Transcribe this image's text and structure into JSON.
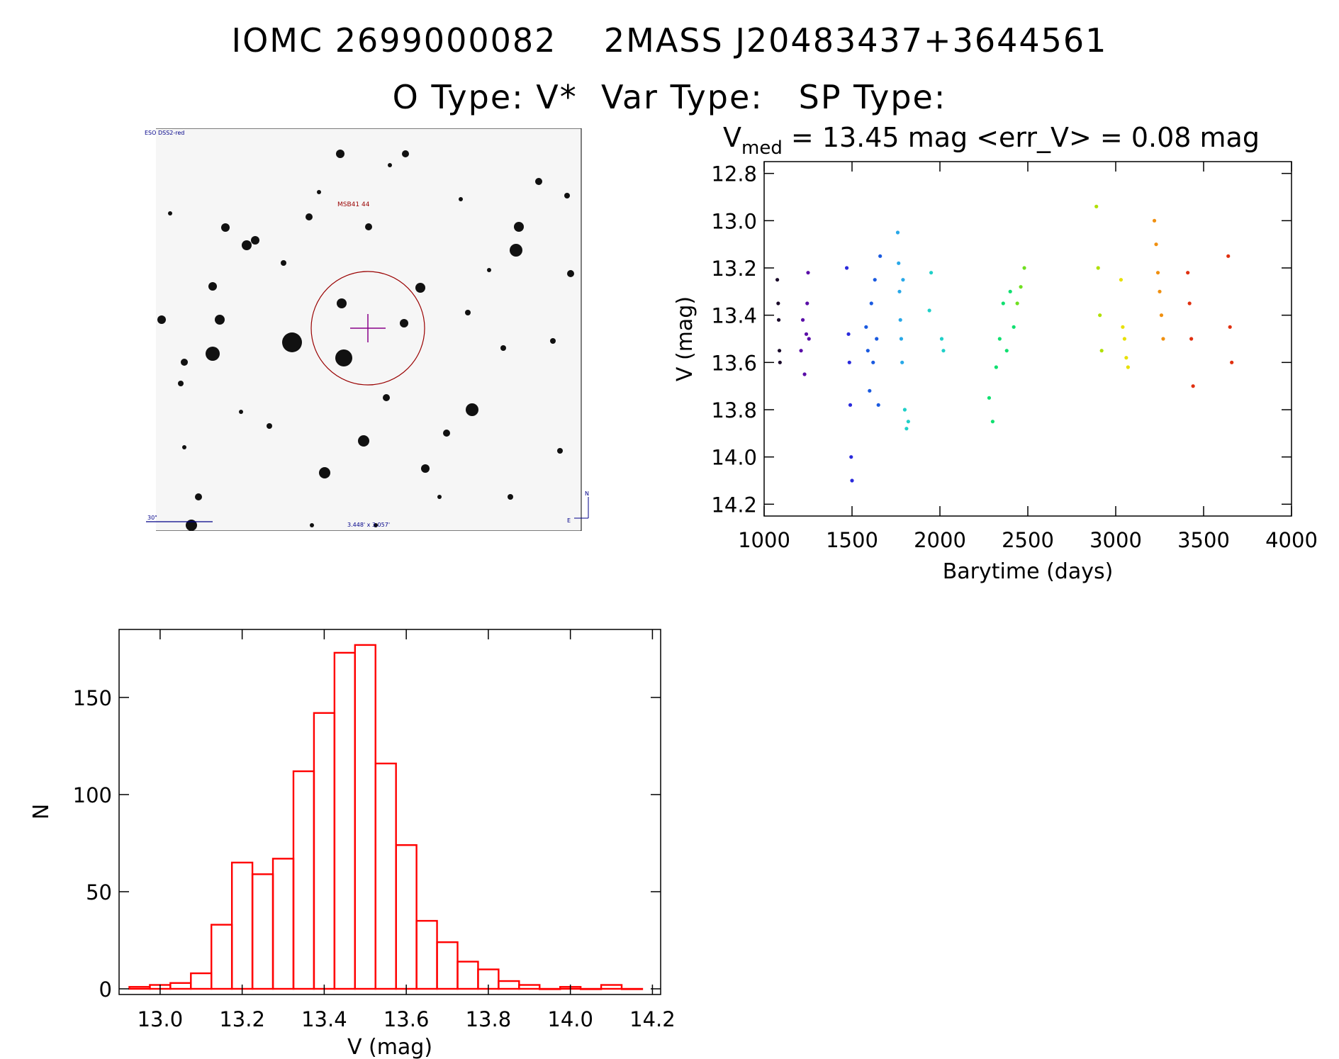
{
  "header": {
    "line1": "IOMC 2699000082    2MASS J20483437+3644561",
    "line2": "O Type: V*  Var Type:   SP Type:"
  },
  "finder": {
    "survey_label": "ESO DSS2-red",
    "target_label": "MSB41 44",
    "scale_label": "30\"",
    "fov_label": "3.448' x 3.057'",
    "north_label": "N",
    "east_label": "E"
  },
  "lightcurve": {
    "stats_prefix": "V",
    "stats_sub": "med",
    "stats_rest": " = 13.45 mag <err_V> = 0.08 mag"
  },
  "chart_data": [
    {
      "type": "scatter",
      "xlabel": "Barytime (days)",
      "ylabel": "V (mag)",
      "xlim": [
        1000,
        4000
      ],
      "ylim": [
        14.25,
        12.75
      ],
      "y_inverted": true,
      "xticks": [
        "1000",
        "1500",
        "2000",
        "2500",
        "3000",
        "3500",
        "4000"
      ],
      "yticks": [
        "12.8",
        "13.0",
        "13.2",
        "13.4",
        "13.6",
        "13.8",
        "14.0",
        "14.2"
      ],
      "series": [
        {
          "color": "#1a0a2a",
          "x": [
            1075,
            1080,
            1083,
            1087,
            1090
          ],
          "y": [
            13.25,
            13.35,
            13.42,
            13.55,
            13.6
          ]
        },
        {
          "color": "#5a0ea8",
          "x": [
            1210,
            1220,
            1230,
            1240,
            1245,
            1250,
            1255
          ],
          "y": [
            13.55,
            13.42,
            13.65,
            13.48,
            13.35,
            13.22,
            13.5
          ]
        },
        {
          "color": "#2a2adc",
          "x": [
            1470,
            1480,
            1485,
            1490,
            1495,
            1500
          ],
          "y": [
            13.2,
            13.48,
            13.6,
            13.78,
            14.0,
            14.1
          ]
        },
        {
          "color": "#1a5ae0",
          "x": [
            1580,
            1590,
            1600,
            1610,
            1620,
            1630,
            1640,
            1650,
            1660
          ],
          "y": [
            13.45,
            13.55,
            13.72,
            13.35,
            13.6,
            13.25,
            13.5,
            13.78,
            13.15
          ]
        },
        {
          "color": "#28a8e8",
          "x": [
            1760,
            1765,
            1770,
            1775,
            1780,
            1785,
            1790
          ],
          "y": [
            13.05,
            13.18,
            13.3,
            13.42,
            13.5,
            13.6,
            13.25
          ]
        },
        {
          "color": "#20d0c8",
          "x": [
            1800,
            1810,
            1820,
            1940,
            1950,
            2010,
            2020
          ],
          "y": [
            13.8,
            13.88,
            13.85,
            13.38,
            13.22,
            13.5,
            13.55
          ]
        },
        {
          "color": "#10e070",
          "x": [
            2280,
            2300,
            2320,
            2340,
            2360,
            2380,
            2400,
            2420
          ],
          "y": [
            13.75,
            13.85,
            13.62,
            13.5,
            13.35,
            13.55,
            13.3,
            13.45
          ]
        },
        {
          "color": "#70e020",
          "x": [
            2440,
            2460,
            2480
          ],
          "y": [
            13.35,
            13.28,
            13.2
          ]
        },
        {
          "color": "#b0e000",
          "x": [
            2890,
            2900,
            2910,
            2920
          ],
          "y": [
            12.94,
            13.2,
            13.4,
            13.55
          ]
        },
        {
          "color": "#e8e000",
          "x": [
            3030,
            3040,
            3050,
            3060,
            3070
          ],
          "y": [
            13.25,
            13.45,
            13.5,
            13.58,
            13.62
          ]
        },
        {
          "color": "#f09010",
          "x": [
            3220,
            3230,
            3240,
            3250,
            3260,
            3270
          ],
          "y": [
            13.0,
            13.1,
            13.22,
            13.3,
            13.4,
            13.5
          ]
        },
        {
          "color": "#e03010",
          "x": [
            3410,
            3420,
            3430,
            3440,
            3640,
            3650,
            3660
          ],
          "y": [
            13.22,
            13.35,
            13.5,
            13.7,
            13.15,
            13.45,
            13.6
          ]
        }
      ]
    },
    {
      "type": "bar",
      "xlabel": "V (mag)",
      "ylabel": "N",
      "xlim": [
        12.9,
        14.22
      ],
      "ylim": [
        0,
        185
      ],
      "xticks": [
        "13.0",
        "13.2",
        "13.4",
        "13.6",
        "13.8",
        "14.0",
        "14.2"
      ],
      "yticks": [
        "0",
        "50",
        "100",
        "150"
      ],
      "bin_width": 0.05,
      "bin_left": [
        12.925,
        12.975,
        13.025,
        13.075,
        13.125,
        13.175,
        13.225,
        13.275,
        13.325,
        13.375,
        13.425,
        13.475,
        13.525,
        13.575,
        13.625,
        13.675,
        13.725,
        13.775,
        13.825,
        13.875,
        13.925,
        13.975,
        14.025,
        14.075,
        14.125
      ],
      "values": [
        1,
        2,
        3,
        8,
        33,
        65,
        59,
        67,
        112,
        142,
        173,
        177,
        116,
        74,
        35,
        24,
        14,
        10,
        4,
        2,
        0,
        1,
        0,
        2,
        0
      ],
      "color": "#ff0000"
    }
  ]
}
